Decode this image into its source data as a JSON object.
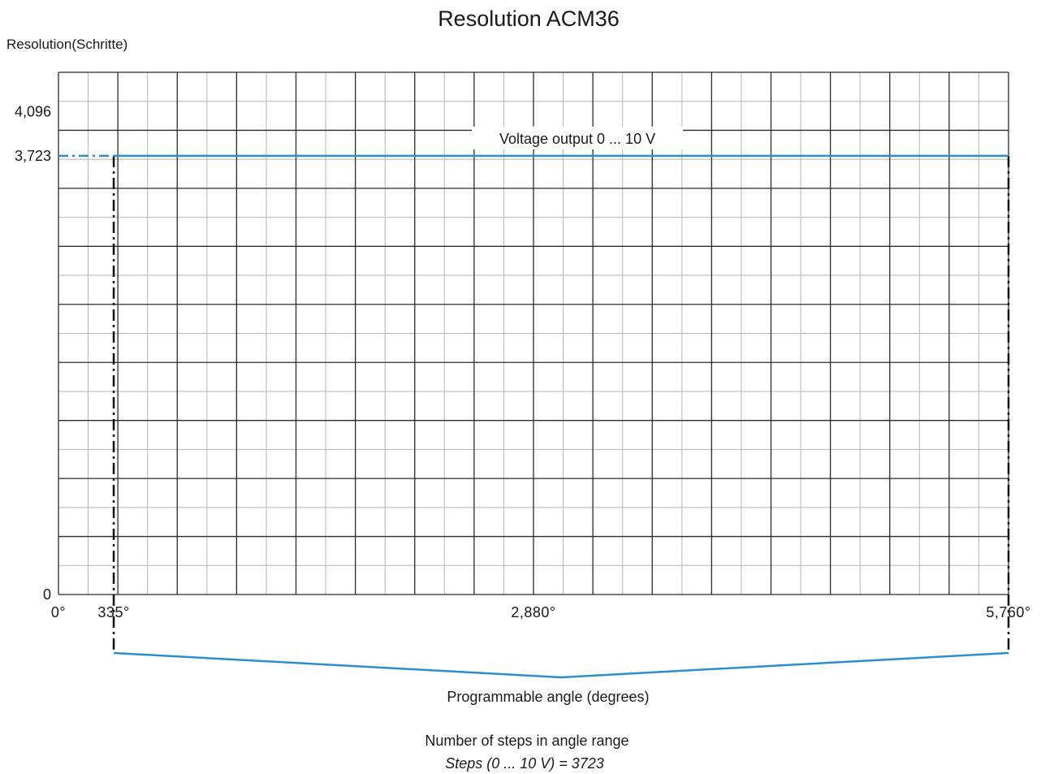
{
  "chart_data": {
    "type": "line",
    "title": "Resolution ACM36",
    "ylabel": "Resolution(Schritte)",
    "xlabel": "Programmable angle (degrees)",
    "xlim": [
      0,
      5760
    ],
    "ylim": [
      0,
      4432
    ],
    "x_tick_labels": [
      "0°",
      "335°",
      "2,880°",
      "5,760°"
    ],
    "x_ticks": [
      0,
      335,
      2880,
      5760
    ],
    "y_tick_labels": [
      "0",
      "3,723",
      "4,096"
    ],
    "y_ticks": [
      0,
      3723,
      4096
    ],
    "grid": true,
    "series": [
      {
        "name": "Voltage output 0 ... 10 V",
        "x": [
          335,
          5760
        ],
        "y": [
          3723,
          3723
        ],
        "color": "#2a8fd0"
      }
    ],
    "range_start": 335,
    "range_end": 5760,
    "note_line1": "Number of steps in angle range",
    "note_line2": "Steps (0 ... 10 V) = 3723"
  },
  "colors": {
    "accent": "#2a8fd0",
    "grid_major": "#2b2b2b",
    "grid_minor": "#b5b5b5"
  }
}
